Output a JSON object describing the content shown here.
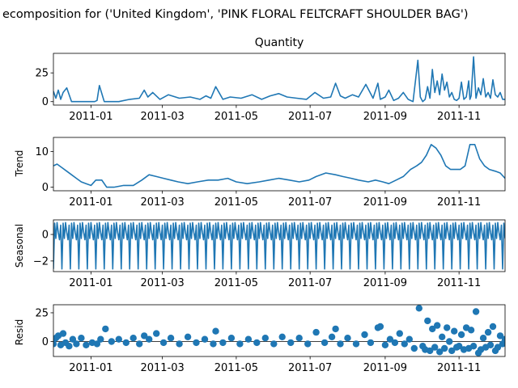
{
  "figure": {
    "suptitle": "ecomposition for ('United Kingdom', 'PINK FLORAL FELTCRAFT SHOULDER BAG')",
    "line_color": "#1f77b4"
  },
  "chart_data": [
    {
      "type": "line",
      "title": "Quantity",
      "ylabel": "",
      "xlim": [
        "2010-12-01",
        "2011-12-09"
      ],
      "ylim": [
        -3,
        42
      ],
      "yticks": [
        0,
        25
      ],
      "xticks": [
        "2011-01",
        "2011-03",
        "2011-05",
        "2011-07",
        "2011-09",
        "2011-11"
      ],
      "grid": false,
      "series": [
        {
          "x": [
            "2010-12-01",
            "2010-12-03",
            "2010-12-05",
            "2010-12-07",
            "2010-12-09",
            "2010-12-12",
            "2010-12-16",
            "2010-12-20",
            "2010-12-25",
            "2011-01-01",
            "2011-01-04",
            "2011-01-06",
            "2011-01-08",
            "2011-01-12",
            "2011-01-18",
            "2011-01-24",
            "2011-02-02",
            "2011-02-10",
            "2011-02-14",
            "2011-02-17",
            "2011-02-21",
            "2011-02-27",
            "2011-03-06",
            "2011-03-15",
            "2011-03-24",
            "2011-04-01",
            "2011-04-06",
            "2011-04-10",
            "2011-04-14",
            "2011-04-20",
            "2011-04-26",
            "2011-05-05",
            "2011-05-14",
            "2011-05-22",
            "2011-05-29",
            "2011-06-05",
            "2011-06-12",
            "2011-06-20",
            "2011-06-28",
            "2011-07-05",
            "2011-07-12",
            "2011-07-18",
            "2011-07-22",
            "2011-07-26",
            "2011-07-30",
            "2011-08-05",
            "2011-08-10",
            "2011-08-16",
            "2011-08-22",
            "2011-08-26",
            "2011-08-28",
            "2011-09-01",
            "2011-09-04",
            "2011-09-08",
            "2011-09-12",
            "2011-09-16",
            "2011-09-20",
            "2011-09-24",
            "2011-09-28",
            "2011-09-30",
            "2011-10-02",
            "2011-10-04",
            "2011-10-06",
            "2011-10-08",
            "2011-10-10",
            "2011-10-12",
            "2011-10-14",
            "2011-10-16",
            "2011-10-18",
            "2011-10-20",
            "2011-10-22",
            "2011-10-24",
            "2011-10-26",
            "2011-10-28",
            "2011-10-30",
            "2011-11-01",
            "2011-11-03",
            "2011-11-05",
            "2011-11-07",
            "2011-11-09",
            "2011-11-10",
            "2011-11-11",
            "2011-11-13",
            "2011-11-15",
            "2011-11-17",
            "2011-11-19",
            "2011-11-21",
            "2011-11-23",
            "2011-11-25",
            "2011-11-27",
            "2011-11-29",
            "2011-12-01",
            "2011-12-03",
            "2011-12-05",
            "2011-12-07",
            "2011-12-09"
          ],
          "y": [
            9,
            3,
            10,
            2,
            8,
            12,
            0,
            0,
            0,
            0,
            0,
            1,
            14,
            0,
            0,
            0,
            2,
            3,
            10,
            4,
            8,
            2,
            6,
            3,
            4,
            2,
            5,
            3,
            13,
            2,
            4,
            3,
            6,
            2,
            5,
            7,
            4,
            3,
            2,
            8,
            3,
            4,
            16,
            5,
            3,
            6,
            4,
            15,
            3,
            16,
            2,
            4,
            10,
            1,
            3,
            8,
            2,
            0,
            36,
            4,
            0,
            2,
            13,
            3,
            28,
            8,
            18,
            6,
            24,
            10,
            17,
            4,
            8,
            2,
            1,
            3,
            17,
            2,
            4,
            18,
            2,
            5,
            39,
            3,
            12,
            6,
            20,
            4,
            8,
            3,
            19,
            6,
            4,
            8,
            2,
            2
          ]
        }
      ]
    },
    {
      "type": "line",
      "title": "",
      "ylabel": "Trend",
      "xlim": [
        "2010-12-01",
        "2011-12-09"
      ],
      "ylim": [
        -1,
        14
      ],
      "yticks": [
        0,
        10
      ],
      "xticks": [
        "2011-01",
        "2011-03",
        "2011-05",
        "2011-07",
        "2011-09",
        "2011-11"
      ],
      "grid": false,
      "series": [
        {
          "x": [
            "2010-12-01",
            "2010-12-04",
            "2010-12-08",
            "2010-12-12",
            "2010-12-16",
            "2010-12-20",
            "2010-12-24",
            "2010-12-28",
            "2011-01-01",
            "2011-01-05",
            "2011-01-10",
            "2011-01-14",
            "2011-01-20",
            "2011-01-28",
            "2011-02-05",
            "2011-02-12",
            "2011-02-18",
            "2011-02-24",
            "2011-03-02",
            "2011-03-08",
            "2011-03-14",
            "2011-03-22",
            "2011-03-30",
            "2011-04-08",
            "2011-04-16",
            "2011-04-24",
            "2011-05-01",
            "2011-05-10",
            "2011-05-20",
            "2011-05-28",
            "2011-06-05",
            "2011-06-14",
            "2011-06-22",
            "2011-06-30",
            "2011-07-06",
            "2011-07-14",
            "2011-07-22",
            "2011-07-28",
            "2011-08-04",
            "2011-08-10",
            "2011-08-18",
            "2011-08-24",
            "2011-08-30",
            "2011-09-04",
            "2011-09-10",
            "2011-09-16",
            "2011-09-22",
            "2011-09-27",
            "2011-10-01",
            "2011-10-05",
            "2011-10-09",
            "2011-10-13",
            "2011-10-17",
            "2011-10-21",
            "2011-10-25",
            "2011-10-29",
            "2011-11-02",
            "2011-11-06",
            "2011-11-10",
            "2011-11-14",
            "2011-11-18",
            "2011-11-22",
            "2011-11-26",
            "2011-12-01",
            "2011-12-05",
            "2011-12-09"
          ],
          "y": [
            6,
            6.5,
            5.5,
            4.5,
            3.5,
            2.5,
            1.5,
            1,
            0.5,
            2,
            2,
            0,
            0,
            0.5,
            0.5,
            2,
            3.5,
            3,
            2.5,
            2,
            1.5,
            1,
            1.5,
            2,
            2,
            2.5,
            1.5,
            1,
            1.5,
            2,
            2.5,
            2,
            1.5,
            2,
            3,
            4,
            3.5,
            3,
            2.5,
            2,
            1.5,
            2,
            1.5,
            1,
            2,
            3,
            5,
            6,
            7,
            9,
            12,
            11,
            9,
            6,
            5,
            5,
            5,
            6,
            12,
            12,
            8,
            6,
            5,
            4.5,
            4,
            2.5
          ]
        }
      ]
    },
    {
      "type": "line",
      "title": "",
      "ylabel": "Seasonal",
      "xlim": [
        "2010-12-01",
        "2011-12-09"
      ],
      "ylim": [
        -2.8,
        1.1
      ],
      "yticks": [
        -2,
        0
      ],
      "xticks": [
        "2011-01",
        "2011-03",
        "2011-05",
        "2011-07",
        "2011-09",
        "2011-11"
      ],
      "grid": false,
      "period_days": 7,
      "weekly_pattern": [
        -2.6,
        0.85,
        -0.3,
        0.9,
        0.15,
        -0.4,
        0.7
      ]
    },
    {
      "type": "scatter",
      "title": "",
      "ylabel": "Resid",
      "xlim": [
        "2010-12-01",
        "2011-12-09"
      ],
      "ylim": [
        -13,
        32
      ],
      "yticks": [
        0,
        25
      ],
      "xticks": [
        "2011-01",
        "2011-03",
        "2011-05",
        "2011-07",
        "2011-09",
        "2011-11"
      ],
      "grid": false,
      "zero_line": true,
      "series": [
        {
          "x": [
            "2010-12-01",
            "2010-12-03",
            "2010-12-05",
            "2010-12-07",
            "2010-12-09",
            "2010-12-11",
            "2010-12-14",
            "2010-12-17",
            "2010-12-20",
            "2010-12-24",
            "2010-12-28",
            "2011-01-02",
            "2011-01-06",
            "2011-01-09",
            "2011-01-13",
            "2011-01-18",
            "2011-01-24",
            "2011-01-30",
            "2011-02-05",
            "2011-02-10",
            "2011-02-14",
            "2011-02-18",
            "2011-02-24",
            "2011-03-02",
            "2011-03-08",
            "2011-03-15",
            "2011-03-22",
            "2011-03-29",
            "2011-04-05",
            "2011-04-12",
            "2011-04-14",
            "2011-04-20",
            "2011-04-27",
            "2011-05-04",
            "2011-05-11",
            "2011-05-18",
            "2011-05-25",
            "2011-06-01",
            "2011-06-08",
            "2011-06-15",
            "2011-06-22",
            "2011-06-29",
            "2011-07-06",
            "2011-07-13",
            "2011-07-19",
            "2011-07-22",
            "2011-07-26",
            "2011-08-01",
            "2011-08-08",
            "2011-08-15",
            "2011-08-20",
            "2011-08-26",
            "2011-08-28",
            "2011-09-01",
            "2011-09-05",
            "2011-09-09",
            "2011-09-13",
            "2011-09-17",
            "2011-09-21",
            "2011-09-25",
            "2011-09-29",
            "2011-10-02",
            "2011-10-04",
            "2011-10-06",
            "2011-10-08",
            "2011-10-10",
            "2011-10-12",
            "2011-10-14",
            "2011-10-16",
            "2011-10-18",
            "2011-10-20",
            "2011-10-22",
            "2011-10-24",
            "2011-10-26",
            "2011-10-28",
            "2011-10-30",
            "2011-11-01",
            "2011-11-03",
            "2011-11-05",
            "2011-11-07",
            "2011-11-09",
            "2011-11-11",
            "2011-11-13",
            "2011-11-15",
            "2011-11-17",
            "2011-11-19",
            "2011-11-21",
            "2011-11-23",
            "2011-11-25",
            "2011-11-27",
            "2011-11-29",
            "2011-12-01",
            "2011-12-03",
            "2011-12-05",
            "2011-12-07",
            "2011-12-09"
          ],
          "y": [
            -2,
            3,
            5,
            -3,
            7,
            -1,
            -4,
            2,
            -2,
            3,
            -3,
            -1,
            -2,
            2,
            11,
            0,
            2,
            -1,
            3,
            -2,
            5,
            2,
            7,
            -1,
            3,
            -2,
            4,
            -1,
            2,
            -2,
            9,
            -1,
            3,
            -2,
            2,
            -1,
            3,
            -2,
            4,
            -1,
            3,
            -2,
            8,
            -1,
            4,
            11,
            -2,
            3,
            -2,
            6,
            -1,
            12,
            13,
            -3,
            2,
            -1,
            7,
            -2,
            2,
            -6,
            29,
            -4,
            -7,
            18,
            -8,
            11,
            -5,
            14,
            -9,
            4,
            -6,
            12,
            0,
            -8,
            9,
            -5,
            -4,
            6,
            -7,
            12,
            -6,
            10,
            -4,
            26,
            -10,
            -7,
            3,
            -5,
            8,
            -3,
            13,
            -8,
            -5,
            5,
            -2,
            2
          ]
        }
      ]
    }
  ]
}
